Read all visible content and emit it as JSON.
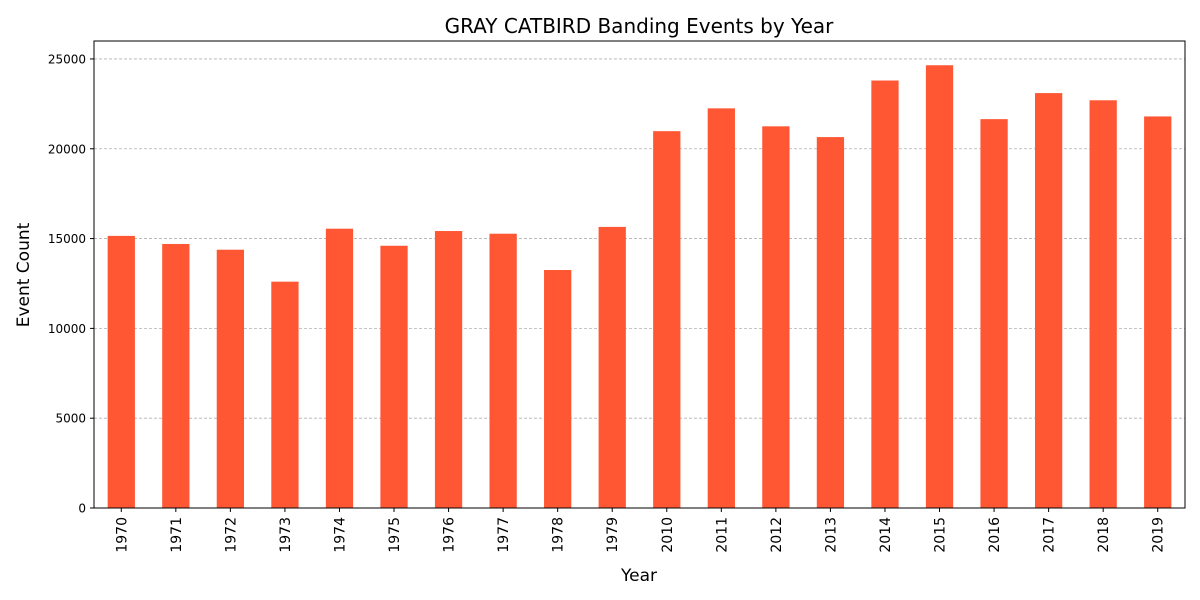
{
  "chart_data": {
    "type": "bar",
    "title": "GRAY CATBIRD Banding Events by Year",
    "xlabel": "Year",
    "ylabel": "Event Count",
    "categories": [
      "1970",
      "1971",
      "1972",
      "1973",
      "1974",
      "1975",
      "1976",
      "1977",
      "1978",
      "1979",
      "2010",
      "2011",
      "2012",
      "2013",
      "2014",
      "2015",
      "2016",
      "2017",
      "2018",
      "2019"
    ],
    "values": [
      15150,
      14700,
      14380,
      12600,
      15550,
      14600,
      15420,
      15270,
      13250,
      15650,
      20980,
      22250,
      21250,
      20650,
      23800,
      24650,
      21650,
      23100,
      22700,
      21800
    ],
    "ylim": [
      0,
      26000
    ],
    "yticks": [
      0,
      5000,
      10000,
      15000,
      20000,
      25000
    ],
    "grid": "y, dashed",
    "color": "#ff5733"
  }
}
